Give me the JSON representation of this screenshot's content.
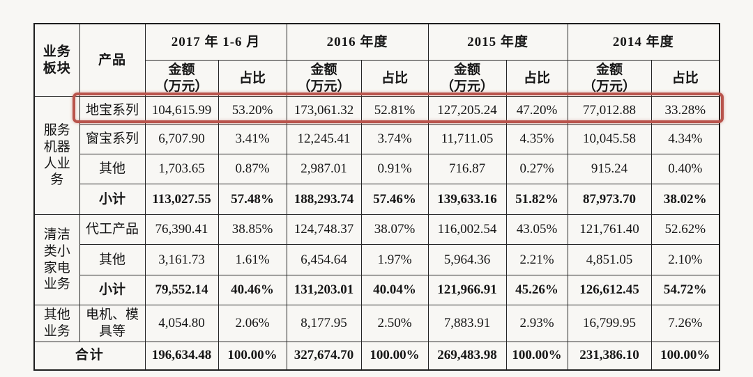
{
  "highlight_color": "#b9544c",
  "table": {
    "headers": {
      "business_segment": "业务\n板块",
      "product": "产品",
      "periods": [
        "2017 年 1-6 月",
        "2016 年度",
        "2015 年度",
        "2014 年度"
      ],
      "amount": "金额\n（万元）",
      "ratio": "占比"
    },
    "rows": [
      {
        "segment": "服务机器人业务",
        "segment_rowspan": 4,
        "product": "地宝系列",
        "highlight": true,
        "values": [
          "104,615.99",
          "53.20%",
          "173,061.32",
          "52.81%",
          "127,205.24",
          "47.20%",
          "77,012.88",
          "33.28%"
        ]
      },
      {
        "product": "窗宝系列",
        "values": [
          "6,707.90",
          "3.41%",
          "12,245.41",
          "3.74%",
          "11,711.05",
          "4.35%",
          "10,045.58",
          "4.34%"
        ]
      },
      {
        "product": "其他",
        "values": [
          "1,703.65",
          "0.87%",
          "2,987.01",
          "0.91%",
          "716.87",
          "0.27%",
          "915.24",
          "0.40%"
        ]
      },
      {
        "product": "小计",
        "bold": true,
        "values": [
          "113,027.55",
          "57.48%",
          "188,293.74",
          "57.46%",
          "139,633.16",
          "51.82%",
          "87,973.70",
          "38.02%"
        ]
      },
      {
        "segment": "清洁类小家电业务",
        "segment_rowspan": 3,
        "product": "代工产品",
        "values": [
          "76,390.41",
          "38.85%",
          "124,748.37",
          "38.07%",
          "116,002.54",
          "43.05%",
          "121,761.40",
          "52.62%"
        ]
      },
      {
        "product": "其他",
        "values": [
          "3,161.73",
          "1.61%",
          "6,454.64",
          "1.97%",
          "5,964.36",
          "2.21%",
          "4,851.05",
          "2.10%"
        ]
      },
      {
        "product": "小计",
        "bold": true,
        "values": [
          "79,552.14",
          "40.46%",
          "131,203.01",
          "40.04%",
          "121,966.91",
          "45.26%",
          "126,612.45",
          "54.72%"
        ]
      },
      {
        "segment": "其他业务",
        "segment_rowspan": 1,
        "product": "电机、模具等",
        "values": [
          "4,054.80",
          "2.06%",
          "8,177.95",
          "2.50%",
          "7,883.91",
          "2.93%",
          "16,799.95",
          "7.26%"
        ]
      },
      {
        "total_label": "合计",
        "bold": true,
        "values": [
          "196,634.48",
          "100.00%",
          "327,674.70",
          "100.00%",
          "269,483.98",
          "100.00%",
          "231,386.10",
          "100.00%"
        ]
      }
    ]
  }
}
